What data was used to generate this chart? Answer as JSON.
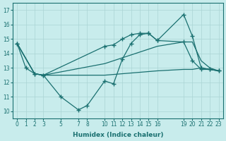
{
  "xlabel": "Humidex (Indice chaleur)",
  "background_color": "#c8ecec",
  "grid_color": "#aad4d4",
  "line_color": "#1a7070",
  "xlim": [
    -0.5,
    23.5
  ],
  "ylim": [
    9.5,
    17.5
  ],
  "yticks": [
    10,
    11,
    12,
    13,
    14,
    15,
    16,
    17
  ],
  "xticks": [
    0,
    1,
    2,
    3,
    5,
    7,
    8,
    10,
    11,
    12,
    13,
    14,
    15,
    16,
    19,
    20,
    21,
    22,
    23
  ],
  "s1_x": [
    0,
    1,
    2,
    3,
    5,
    7,
    8,
    10,
    11,
    12,
    13,
    14,
    15,
    16,
    19,
    20,
    21,
    22,
    23
  ],
  "s1_y": [
    14.7,
    13.0,
    12.6,
    12.5,
    11.0,
    10.1,
    10.4,
    12.1,
    11.9,
    13.6,
    14.7,
    15.3,
    15.4,
    14.9,
    14.8,
    13.5,
    12.9,
    12.9,
    12.8
  ],
  "s2_x": [
    0,
    2,
    3,
    10,
    11,
    12,
    13,
    14,
    15,
    16,
    19,
    20,
    21,
    22,
    23
  ],
  "s2_y": [
    14.7,
    12.6,
    12.5,
    14.5,
    14.6,
    15.0,
    15.3,
    15.4,
    15.4,
    14.9,
    16.7,
    15.2,
    13.0,
    12.9,
    12.8
  ],
  "s3_x": [
    0,
    2,
    3,
    10,
    11,
    12,
    13,
    14,
    15,
    16,
    19,
    20,
    21,
    22,
    23
  ],
  "s3_y": [
    14.7,
    12.6,
    12.5,
    13.3,
    13.5,
    13.7,
    13.9,
    14.1,
    14.3,
    14.5,
    14.8,
    14.8,
    13.5,
    13.0,
    12.8
  ],
  "s4_x": [
    0,
    2,
    3,
    10,
    16,
    19,
    20,
    21,
    22,
    23
  ],
  "s4_y": [
    14.7,
    12.6,
    12.5,
    12.5,
    12.8,
    12.9,
    12.9,
    13.0,
    12.9,
    12.8
  ]
}
